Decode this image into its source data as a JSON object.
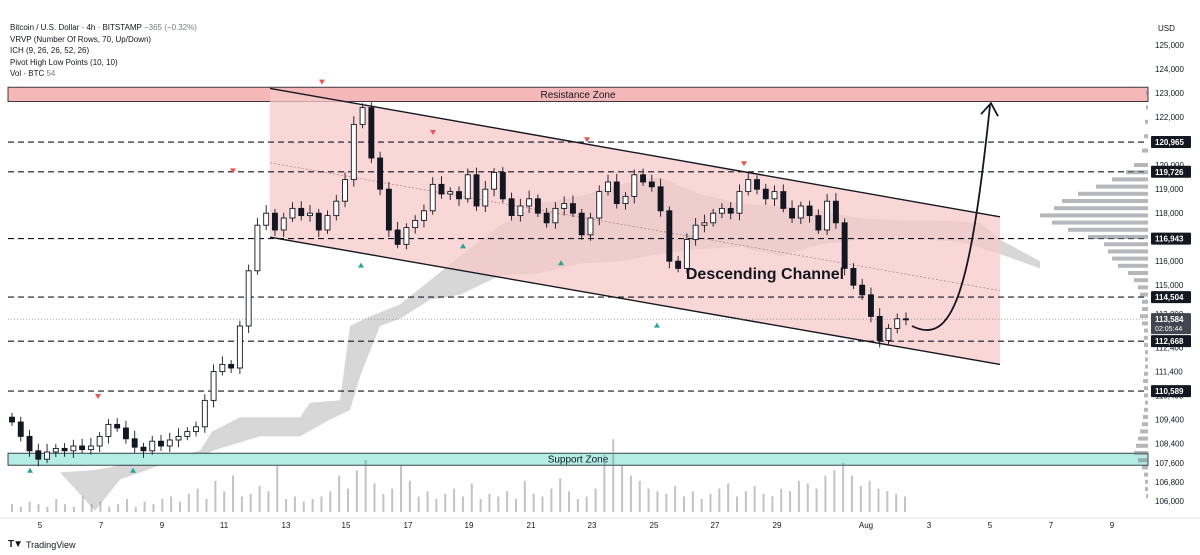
{
  "header": {
    "symbol_line": "Bitcoin / U.S. Dollar · 4h · BITSTAMP",
    "change": "−365 (−0.32%)",
    "indicators": [
      "VRVP (Number Of Rows, 70, Up/Down)",
      "ICH (9, 26, 26, 52, 26)",
      "Pivot High Low Points (10, 10)"
    ],
    "volume_label": "Vol · BTC",
    "volume_value": "54"
  },
  "currency": "USD",
  "brand": "TradingView",
  "colors": {
    "up": "#26a69a",
    "down": "#ef5350",
    "candle": "#131722",
    "channel_fill": "#f8c9c9",
    "resistance_fill": "#f5b7b7",
    "support_fill": "#b3ede4",
    "cloud": "#b0b0b0"
  },
  "chart_data": {
    "type": "candlestick",
    "title": "",
    "xlabel": "",
    "ylabel": "",
    "ylim": [
      105300,
      126300
    ],
    "x_ticks": [
      "5",
      "7",
      "9",
      "11",
      "13",
      "15",
      "17",
      "19",
      "21",
      "23",
      "25",
      "27",
      "29",
      "Aug",
      "3",
      "5",
      "7",
      "9"
    ],
    "y_ticks": [
      "106,000",
      "106,800",
      "107,600",
      "108,400",
      "109,400",
      "110,400",
      "111,400",
      "112,400",
      "113,800",
      "115,000",
      "116,000",
      "117,000",
      "118,000",
      "119,000",
      "120,000",
      "121,000",
      "122,000",
      "123,000",
      "124,000",
      "125,000"
    ],
    "price_levels": [
      {
        "label": "120,965",
        "value": 120965
      },
      {
        "label": "119,726",
        "value": 119726
      },
      {
        "label": "116,943",
        "value": 116943
      },
      {
        "label": "114,504",
        "value": 114504
      },
      {
        "label": "112,668",
        "value": 112668
      },
      {
        "label": "110,589",
        "value": 110589
      }
    ],
    "current_price": {
      "label": "113,584",
      "countdown": "02:05:44",
      "value": 113584
    },
    "zones": [
      {
        "label": "Resistance Zone",
        "from": 122650,
        "to": 123250
      },
      {
        "label": "Support Zone",
        "from": 107500,
        "to": 108000
      }
    ],
    "channel": {
      "label": "Descending Channel",
      "upper": [
        [
          12.6,
          123200
        ],
        [
          2.2,
          117850
        ]
      ],
      "lower": [
        [
          12.6,
          117000
        ],
        [
          2.2,
          111700
        ]
      ]
    },
    "projection": {
      "from": [
        1.8,
        113300
      ],
      "to": [
        4.9,
        122500
      ]
    },
    "pivot_highs_count": 6,
    "pivot_lows_count": 6,
    "candles_approx_close": [
      109300,
      108700,
      108100,
      107750,
      108050,
      108200,
      108100,
      108300,
      108150,
      108300,
      108700,
      109200,
      109050,
      108600,
      108250,
      108100,
      108500,
      108300,
      108550,
      108700,
      108900,
      109100,
      110200,
      111400,
      111700,
      111550,
      113300,
      115600,
      117500,
      118000,
      117300,
      117800,
      118200,
      117900,
      118000,
      117300,
      117900,
      118500,
      119400,
      121700,
      122400,
      120300,
      119000,
      117300,
      116700,
      117400,
      117700,
      118100,
      119200,
      118800,
      118900,
      118600,
      119600,
      118300,
      119000,
      119700,
      118600,
      117900,
      118300,
      118600,
      118000,
      117600,
      118200,
      118400,
      118000,
      117100,
      117800,
      118900,
      119300,
      118400,
      118700,
      119600,
      119300,
      119100,
      118100,
      116000,
      115700,
      116900,
      117500,
      117600,
      118000,
      118200,
      118000,
      118900,
      119400,
      119000,
      118600,
      118900,
      118200,
      117800,
      118300,
      117900,
      117300,
      118500,
      117600,
      115700,
      115000,
      114600,
      113700,
      112700,
      113200,
      113600,
      113584
    ],
    "volume_scale": "relative"
  }
}
